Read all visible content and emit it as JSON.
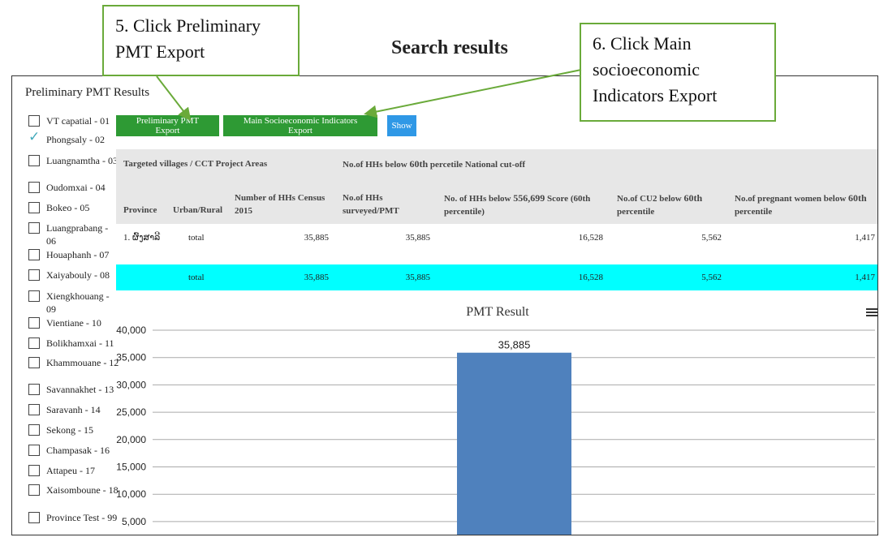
{
  "annotations": {
    "step5": [
      "5. Click Preliminary",
      "PMT Export"
    ],
    "step6": [
      "6. Click Main",
      "socioeconomic",
      "Indicators Export"
    ],
    "search_title": "Search results"
  },
  "panel_title": "Preliminary PMT Results",
  "provinces": [
    {
      "label": "VT capatial - 01",
      "checked": false
    },
    {
      "label": "Phongsaly - 02",
      "checked": true
    },
    {
      "label": "Luangnamtha - 03",
      "checked": false
    },
    {
      "label": "Oudomxai - 04",
      "checked": false
    },
    {
      "label": "Bokeo - 05",
      "checked": false
    },
    {
      "label": "Luangprabang - 06",
      "checked": false
    },
    {
      "label": "Houaphanh - 07",
      "checked": false
    },
    {
      "label": "Xaiyabouly - 08",
      "checked": false
    },
    {
      "label": "Xiengkhouang - 09",
      "checked": false
    },
    {
      "label": "Vientiane - 10",
      "checked": false
    },
    {
      "label": "Bolikhamxai - 11",
      "checked": false
    },
    {
      "label": "Khammouane - 12",
      "checked": false
    },
    {
      "label": "Savannakhet - 13",
      "checked": false
    },
    {
      "label": "Saravanh - 14",
      "checked": false
    },
    {
      "label": "Sekong - 15",
      "checked": false
    },
    {
      "label": "Champasak - 16",
      "checked": false
    },
    {
      "label": "Attapeu - 17",
      "checked": false
    },
    {
      "label": "Xaisomboune - 18",
      "checked": false
    },
    {
      "label": "Province Test - 99",
      "checked": false
    }
  ],
  "buttons": {
    "pmt_export": "Preliminary PMT Export",
    "main_export": "Main Socioeconomic Indicators Export",
    "show": "Show"
  },
  "table": {
    "group_headers": {
      "targeted": "Targeted villages / CCT Project Areas",
      "below_cutoff_pre": "No.of HHs below ",
      "below_cutoff_num": "60th",
      "below_cutoff_post": " percetile National cut-off"
    },
    "headers": {
      "province": "Province",
      "urban_rural": "Urban/Rural",
      "census": "Number of HHs Census 2015",
      "surveyed": "No.of HHs surveyed/PMT",
      "below_score_pre": "No. of HHs below ",
      "below_score_num": "556,699",
      "below_score_post": " Score (60th percentile)",
      "cu2_pre": "No.of CU2 below ",
      "cu2_num": "60th",
      "cu2_post": " percentile",
      "pregnant_pre": "No.of pregnant women below ",
      "pregnant_num": "60th",
      "pregnant_post": " percentile"
    },
    "rows": [
      {
        "province": "1. ຜົ້ງສາລີ",
        "urban_rural": "total",
        "census": "35,885",
        "surveyed": "35,885",
        "below_score": "16,528",
        "cu2": "5,562",
        "pregnant": "1,417"
      },
      {
        "province": "",
        "urban_rural": "total",
        "census": "35,885",
        "surveyed": "35,885",
        "below_score": "16,528",
        "cu2": "5,562",
        "pregnant": "1,417"
      }
    ]
  },
  "chart_data": {
    "type": "bar",
    "title": "PMT Result",
    "categories": [
      ""
    ],
    "values": [
      35885
    ],
    "data_labels": [
      "35,885"
    ],
    "ylim": [
      0,
      40000
    ],
    "y_ticks": [
      5000,
      10000,
      15000,
      20000,
      25000,
      30000,
      35000,
      40000
    ],
    "y_tick_labels": [
      "5,000",
      "10,000",
      "15,000",
      "20,000",
      "25,000",
      "30,000",
      "35,000",
      "40,000"
    ],
    "grid": true,
    "bar_color": "#4f81bd"
  },
  "colors": {
    "export_button": "#2e9a34",
    "show_button": "#2f98e6",
    "total_row": "#00ffff",
    "callout_border": "#6aaa3a"
  }
}
